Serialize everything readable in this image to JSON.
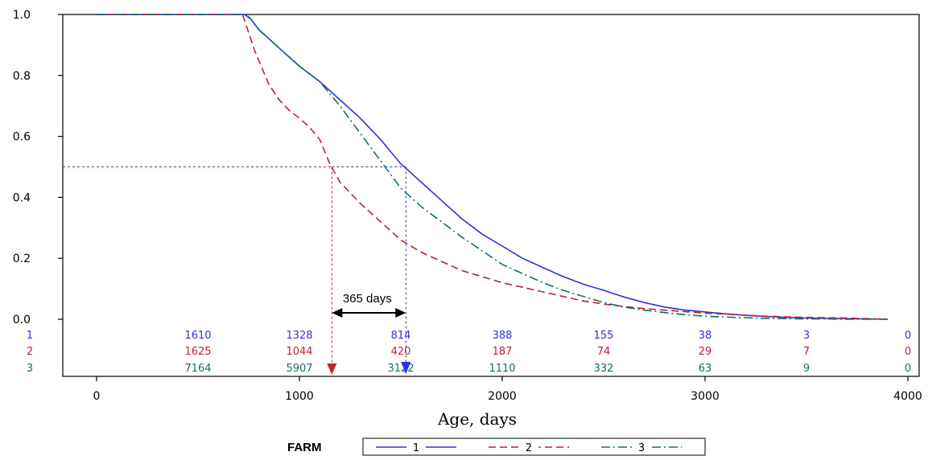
{
  "chart_data": {
    "type": "line",
    "title": "",
    "xlabel": "Age, days",
    "ylabel": "",
    "xlim": [
      -200,
      4050
    ],
    "ylim": [
      0,
      1.0
    ],
    "grid": false,
    "x_ticks": [
      0,
      1000,
      2000,
      3000,
      4000
    ],
    "x_tick_labels": [
      "0",
      "1000",
      "2000",
      "3000",
      "4000"
    ],
    "y_ticks": [
      0,
      0.2,
      0.4,
      0.6,
      0.8,
      1.0
    ],
    "y_tick_labels": [
      "0.0",
      "0.2",
      "0.4",
      "0.6",
      "0.8",
      "1.0"
    ],
    "legend": {
      "title": "FARM",
      "position": "bottom-center",
      "entries": [
        "1",
        "2",
        "3"
      ]
    },
    "colors": [
      "#3030e0",
      "#c02030",
      "#107060"
    ],
    "series": [
      {
        "name": "1",
        "color": "#3030e0",
        "dash": "solid",
        "x": [
          0,
          730,
          760,
          800,
          900,
          1000,
          1100,
          1200,
          1300,
          1400,
          1500,
          1600,
          1700,
          1800,
          1900,
          2000,
          2100,
          2200,
          2300,
          2400,
          2500,
          2600,
          2700,
          2800,
          2900,
          3000,
          3100,
          3200,
          3300,
          3400,
          3500,
          3600,
          3700,
          3800,
          3900
        ],
        "y": [
          1.0,
          1.0,
          0.985,
          0.95,
          0.89,
          0.83,
          0.78,
          0.72,
          0.66,
          0.59,
          0.51,
          0.45,
          0.39,
          0.33,
          0.28,
          0.24,
          0.2,
          0.17,
          0.14,
          0.115,
          0.095,
          0.073,
          0.055,
          0.04,
          0.03,
          0.024,
          0.018,
          0.013,
          0.009,
          0.006,
          0.004,
          0.003,
          0.002,
          0.001,
          0.0
        ]
      },
      {
        "name": "2",
        "color": "#c02030",
        "dash": "dashed",
        "x": [
          0,
          720,
          740,
          780,
          850,
          900,
          950,
          1000,
          1050,
          1100,
          1150,
          1200,
          1300,
          1400,
          1500,
          1600,
          1700,
          1800,
          1900,
          2000,
          2100,
          2200,
          2300,
          2400,
          2500,
          2600,
          2700,
          2800,
          2900,
          3000,
          3100,
          3200,
          3300,
          3400,
          3500,
          3600,
          3700,
          3800,
          3900
        ],
        "y": [
          1.0,
          1.0,
          0.96,
          0.88,
          0.77,
          0.72,
          0.685,
          0.66,
          0.63,
          0.59,
          0.51,
          0.45,
          0.38,
          0.32,
          0.26,
          0.22,
          0.19,
          0.16,
          0.14,
          0.12,
          0.105,
          0.09,
          0.075,
          0.06,
          0.05,
          0.042,
          0.035,
          0.03,
          0.025,
          0.02,
          0.017,
          0.013,
          0.01,
          0.008,
          0.006,
          0.005,
          0.004,
          0.002,
          0.0
        ]
      },
      {
        "name": "3",
        "color": "#107060",
        "dash": "dashdot",
        "x": [
          0,
          740,
          760,
          800,
          900,
          1000,
          1100,
          1200,
          1300,
          1400,
          1500,
          1600,
          1700,
          1800,
          1900,
          2000,
          2100,
          2200,
          2300,
          2400,
          2500,
          2600,
          2700,
          2800,
          2900,
          3000,
          3100,
          3200,
          3300,
          3400,
          3500,
          3600,
          3700,
          3800,
          3900
        ],
        "y": [
          1.0,
          1.0,
          0.985,
          0.95,
          0.89,
          0.83,
          0.78,
          0.7,
          0.61,
          0.52,
          0.43,
          0.37,
          0.32,
          0.27,
          0.225,
          0.18,
          0.15,
          0.12,
          0.095,
          0.075,
          0.055,
          0.04,
          0.03,
          0.022,
          0.015,
          0.01,
          0.007,
          0.005,
          0.003,
          0.002,
          0.001,
          0.001,
          0.0,
          0.0,
          0.0
        ]
      }
    ],
    "number_at_risk": {
      "x": [
        500,
        1000,
        1500,
        2000,
        2500,
        3000,
        3500,
        4000
      ],
      "rows": [
        {
          "label": "1",
          "color": "#3030e0",
          "values": [
            "1610",
            "1328",
            "814",
            "388",
            "155",
            "38",
            "3",
            "0"
          ]
        },
        {
          "label": "2",
          "color": "#c02030",
          "values": [
            "1625",
            "1044",
            "420",
            "187",
            "74",
            "29",
            "7",
            "0"
          ]
        },
        {
          "label": "3",
          "color": "#107060",
          "values": [
            "7164",
            "5907",
            "3122",
            "1110",
            "332",
            "63",
            "9",
            "0"
          ]
        }
      ]
    },
    "annotations": {
      "median_level": 0.5,
      "median_farm_2_x": 1160,
      "median_farm_1_x": 1525,
      "interval_label": "365 days"
    }
  }
}
